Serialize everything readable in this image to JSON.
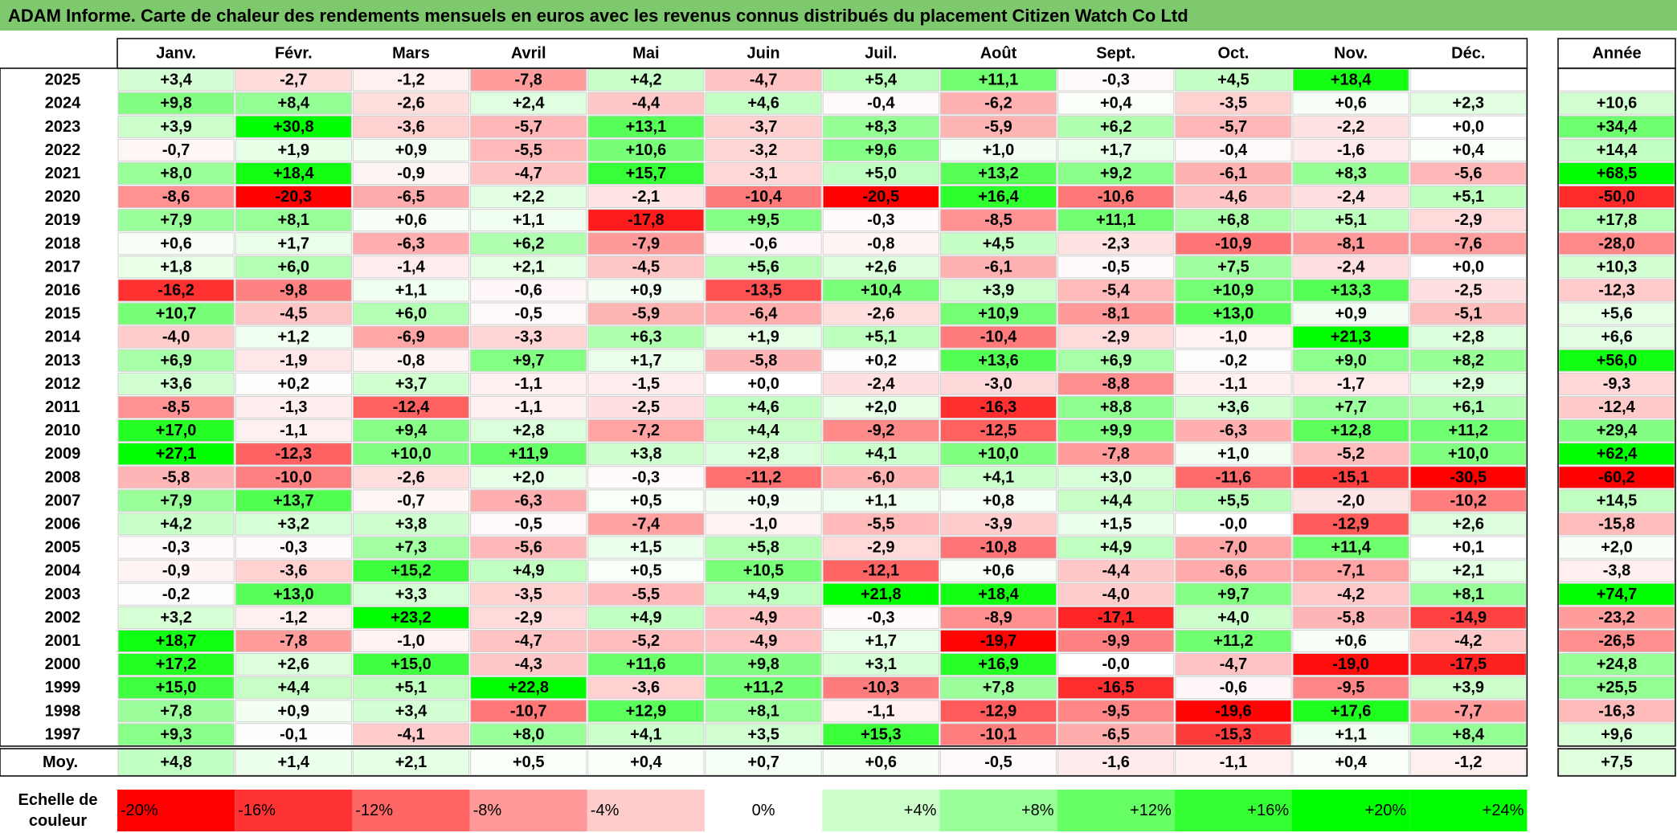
{
  "title": "ADAM Informe. Carte de chaleur des rendements mensuels en euros avec les revenus connus distribués du placement Citizen Watch Co Ltd",
  "colors": {
    "title_bg": "#7ec86e",
    "negative_max": "#ff0000",
    "neutral": "#ffffff",
    "positive_max": "#00ff00"
  },
  "chart_data": {
    "type": "heatmap",
    "months": [
      "Janv.",
      "Févr.",
      "Mars",
      "Avril",
      "Mai",
      "Juin",
      "Juil.",
      "Août",
      "Sept.",
      "Oct.",
      "Nov.",
      "Déc."
    ],
    "year_column_label": "Année",
    "average_row_label": "Moy.",
    "rows": [
      {
        "year": "2025",
        "values": [
          "+3,4",
          "-2,7",
          "-1,2",
          "-7,8",
          "+4,2",
          "-4,7",
          "+5,4",
          "+11,1",
          "-0,3",
          "+4,5",
          "+18,4",
          ""
        ],
        "annual": ""
      },
      {
        "year": "2024",
        "values": [
          "+9,8",
          "+8,4",
          "-2,6",
          "+2,4",
          "-4,4",
          "+4,6",
          "-0,4",
          "-6,2",
          "+0,4",
          "-3,5",
          "+0,6",
          "+2,3"
        ],
        "annual": "+10,6"
      },
      {
        "year": "2023",
        "values": [
          "+3,9",
          "+30,8",
          "-3,6",
          "-5,7",
          "+13,1",
          "-3,7",
          "+8,3",
          "-5,9",
          "+6,2",
          "-5,7",
          "-2,2",
          "+0,0"
        ],
        "annual": "+34,4"
      },
      {
        "year": "2022",
        "values": [
          "-0,7",
          "+1,9",
          "+0,9",
          "-5,5",
          "+10,6",
          "-3,2",
          "+9,6",
          "+1,0",
          "+1,7",
          "-0,4",
          "-1,6",
          "+0,4"
        ],
        "annual": "+14,4"
      },
      {
        "year": "2021",
        "values": [
          "+8,0",
          "+18,4",
          "-0,9",
          "-4,7",
          "+15,7",
          "-3,1",
          "+5,0",
          "+13,2",
          "+9,2",
          "-6,1",
          "+8,3",
          "-5,6"
        ],
        "annual": "+68,5"
      },
      {
        "year": "2020",
        "values": [
          "-8,6",
          "-20,3",
          "-6,5",
          "+2,2",
          "-2,1",
          "-10,4",
          "-20,5",
          "+16,4",
          "-10,6",
          "-4,6",
          "-2,4",
          "+5,1"
        ],
        "annual": "-50,0"
      },
      {
        "year": "2019",
        "values": [
          "+7,9",
          "+8,1",
          "+0,6",
          "+1,1",
          "-17,8",
          "+9,5",
          "-0,3",
          "-8,5",
          "+11,1",
          "+6,8",
          "+5,1",
          "-2,9"
        ],
        "annual": "+17,8"
      },
      {
        "year": "2018",
        "values": [
          "+0,6",
          "+1,7",
          "-6,3",
          "+6,2",
          "-7,9",
          "-0,6",
          "-0,8",
          "+4,5",
          "-2,3",
          "-10,9",
          "-8,1",
          "-7,6"
        ],
        "annual": "-28,0"
      },
      {
        "year": "2017",
        "values": [
          "+1,8",
          "+6,0",
          "-1,4",
          "+2,1",
          "-4,5",
          "+5,6",
          "+2,6",
          "-6,1",
          "-0,5",
          "+7,5",
          "-2,4",
          "+0,0"
        ],
        "annual": "+10,3"
      },
      {
        "year": "2016",
        "values": [
          "-16,2",
          "-9,8",
          "+1,1",
          "-0,6",
          "+0,9",
          "-13,5",
          "+10,4",
          "+3,9",
          "-5,4",
          "+10,9",
          "+13,3",
          "-2,5"
        ],
        "annual": "-12,3"
      },
      {
        "year": "2015",
        "values": [
          "+10,7",
          "-4,5",
          "+6,0",
          "-0,5",
          "-5,9",
          "-6,4",
          "-2,6",
          "+10,9",
          "-8,1",
          "+13,0",
          "+0,9",
          "-5,1"
        ],
        "annual": "+5,6"
      },
      {
        "year": "2014",
        "values": [
          "-4,0",
          "+1,2",
          "-6,9",
          "-3,3",
          "+6,3",
          "+1,9",
          "+5,1",
          "-10,4",
          "-2,9",
          "-1,0",
          "+21,3",
          "+2,8"
        ],
        "annual": "+6,6"
      },
      {
        "year": "2013",
        "values": [
          "+6,9",
          "-1,9",
          "-0,8",
          "+9,7",
          "+1,7",
          "-5,8",
          "+0,2",
          "+13,6",
          "+6,9",
          "-0,2",
          "+9,0",
          "+8,2"
        ],
        "annual": "+56,0"
      },
      {
        "year": "2012",
        "values": [
          "+3,6",
          "+0,2",
          "+3,7",
          "-1,1",
          "-1,5",
          "+0,0",
          "-2,4",
          "-3,0",
          "-8,8",
          "-1,1",
          "-1,7",
          "+2,9"
        ],
        "annual": "-9,3"
      },
      {
        "year": "2011",
        "values": [
          "-8,5",
          "-1,3",
          "-12,4",
          "-1,1",
          "-2,5",
          "+4,6",
          "+2,0",
          "-16,3",
          "+8,8",
          "+3,6",
          "+7,7",
          "+6,1"
        ],
        "annual": "-12,4"
      },
      {
        "year": "2010",
        "values": [
          "+17,0",
          "-1,1",
          "+9,4",
          "+2,8",
          "-7,2",
          "+4,4",
          "-9,2",
          "-12,5",
          "+9,9",
          "-6,3",
          "+12,8",
          "+11,2"
        ],
        "annual": "+29,4"
      },
      {
        "year": "2009",
        "values": [
          "+27,1",
          "-12,3",
          "+10,0",
          "+11,9",
          "+3,8",
          "+2,8",
          "+4,1",
          "+10,0",
          "-7,8",
          "+1,0",
          "-5,2",
          "+10,0"
        ],
        "annual": "+62,4"
      },
      {
        "year": "2008",
        "values": [
          "-5,8",
          "-10,0",
          "-2,6",
          "+2,0",
          "-0,3",
          "-11,2",
          "-6,0",
          "+4,1",
          "+3,0",
          "-11,6",
          "-15,1",
          "-30,5"
        ],
        "annual": "-60,2"
      },
      {
        "year": "2007",
        "values": [
          "+7,9",
          "+13,7",
          "-0,7",
          "-6,3",
          "+0,5",
          "+0,9",
          "+1,1",
          "+0,8",
          "+4,4",
          "+5,5",
          "-2,0",
          "-10,2"
        ],
        "annual": "+14,5"
      },
      {
        "year": "2006",
        "values": [
          "+4,2",
          "+3,2",
          "+3,8",
          "-0,5",
          "-7,4",
          "-1,0",
          "-5,5",
          "-3,9",
          "+1,5",
          "-0,0",
          "-12,9",
          "+2,6"
        ],
        "annual": "-15,8"
      },
      {
        "year": "2005",
        "values": [
          "-0,3",
          "-0,3",
          "+7,3",
          "-5,6",
          "+1,5",
          "+5,8",
          "-2,9",
          "-10,8",
          "+4,9",
          "-7,0",
          "+11,4",
          "+0,1"
        ],
        "annual": "+2,0"
      },
      {
        "year": "2004",
        "values": [
          "-0,9",
          "-3,6",
          "+15,2",
          "+4,9",
          "+0,5",
          "+10,5",
          "-12,1",
          "+0,6",
          "-4,4",
          "-6,6",
          "-7,1",
          "+2,1"
        ],
        "annual": "-3,8"
      },
      {
        "year": "2003",
        "values": [
          "-0,2",
          "+13,0",
          "+3,3",
          "-3,5",
          "-5,5",
          "+4,9",
          "+21,8",
          "+18,4",
          "-4,0",
          "+9,7",
          "-4,2",
          "+8,1"
        ],
        "annual": "+74,7"
      },
      {
        "year": "2002",
        "values": [
          "+3,2",
          "-1,2",
          "+23,2",
          "-2,9",
          "+4,9",
          "-4,9",
          "-0,3",
          "-8,9",
          "-17,1",
          "+4,0",
          "-5,8",
          "-14,9"
        ],
        "annual": "-23,2"
      },
      {
        "year": "2001",
        "values": [
          "+18,7",
          "-7,8",
          "-1,0",
          "-4,7",
          "-5,2",
          "-4,9",
          "+1,7",
          "-19,7",
          "-9,9",
          "+11,2",
          "+0,6",
          "-4,2"
        ],
        "annual": "-26,5"
      },
      {
        "year": "2000",
        "values": [
          "+17,2",
          "+2,6",
          "+15,0",
          "-4,3",
          "+11,6",
          "+9,8",
          "+3,1",
          "+16,9",
          "-0,0",
          "-4,7",
          "-19,0",
          "-17,5"
        ],
        "annual": "+24,8"
      },
      {
        "year": "1999",
        "values": [
          "+15,0",
          "+4,4",
          "+5,1",
          "+22,8",
          "-3,6",
          "+11,2",
          "-10,3",
          "+7,8",
          "-16,5",
          "-0,6",
          "-9,5",
          "+3,9"
        ],
        "annual": "+25,5"
      },
      {
        "year": "1998",
        "values": [
          "+7,8",
          "+0,9",
          "+3,4",
          "-10,7",
          "+12,9",
          "+8,1",
          "-1,1",
          "-12,9",
          "-9,5",
          "-19,6",
          "+17,6",
          "-7,7"
        ],
        "annual": "-16,3"
      },
      {
        "year": "1997",
        "values": [
          "+9,3",
          "-0,1",
          "-4,1",
          "+8,0",
          "+4,1",
          "+3,5",
          "+15,3",
          "-10,1",
          "-6,5",
          "-15,3",
          "+1,1",
          "+8,4"
        ],
        "annual": "+9,6"
      }
    ],
    "averages": {
      "values": [
        "+4,8",
        "+1,4",
        "+2,1",
        "+0,5",
        "+0,4",
        "+0,7",
        "+0,6",
        "-0,5",
        "-1,6",
        "-1,1",
        "+0,4",
        "-1,2"
      ],
      "annual": "+7,5"
    },
    "scale": {
      "label": "Echelle de couleur",
      "label_lines": [
        "Echelle de",
        "couleur"
      ],
      "steps": [
        {
          "label": "-20%",
          "value": -20
        },
        {
          "label": "-16%",
          "value": -16
        },
        {
          "label": "-12%",
          "value": -12
        },
        {
          "label": "-8%",
          "value": -8
        },
        {
          "label": "-4%",
          "value": -4
        },
        {
          "label": "0%",
          "value": 0
        },
        {
          "label": "+4%",
          "value": 4
        },
        {
          "label": "+8%",
          "value": 8
        },
        {
          "label": "+12%",
          "value": 12
        },
        {
          "label": "+16%",
          "value": 16
        },
        {
          "label": "+20%",
          "value": 20
        },
        {
          "label": "+24%",
          "value": 24
        }
      ]
    }
  }
}
